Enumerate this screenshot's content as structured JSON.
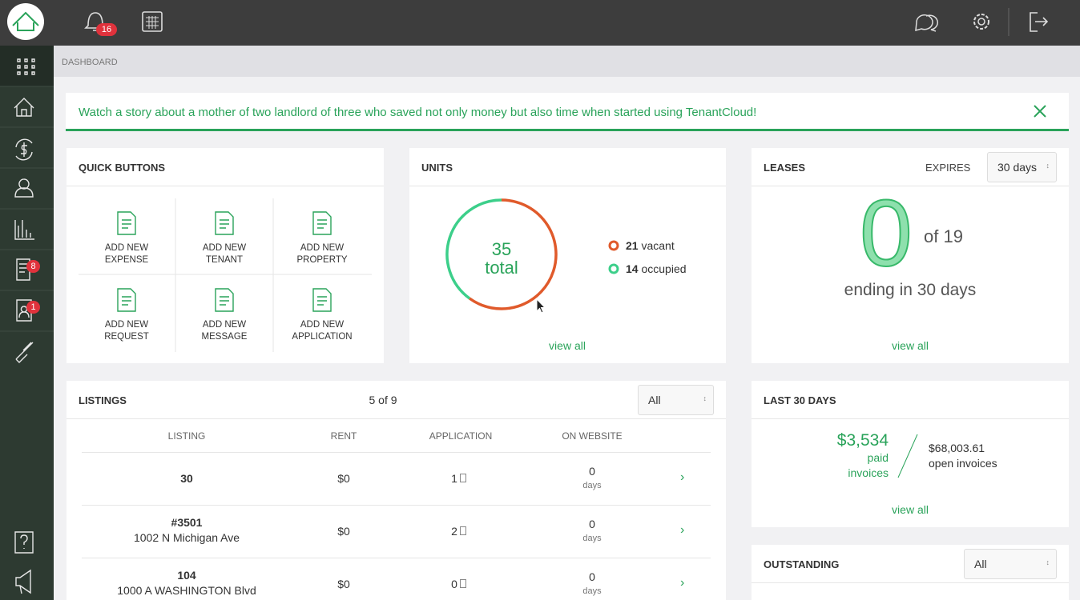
{
  "header": {
    "notifications_badge": "16"
  },
  "sidebar": {
    "badges": [
      "8",
      "1"
    ]
  },
  "breadcrumb": "DASHBOARD",
  "banner": "Watch a story about a mother of two landlord of three who saved not only money but also time when started using TenantCloud!",
  "quick_buttons": {
    "title": "QUICK BUTTONS",
    "buttons": [
      [
        "ADD NEW",
        "EXPENSE"
      ],
      [
        "ADD NEW",
        "TENANT"
      ],
      [
        "ADD NEW",
        "PROPERTY"
      ],
      [
        "ADD NEW",
        "REQUEST"
      ],
      [
        "ADD NEW",
        "MESSAGE"
      ],
      [
        "ADD NEW",
        "APPLICATION"
      ]
    ]
  },
  "units": {
    "title": "UNITS",
    "total": 35,
    "total_label": "total",
    "vacant": 21,
    "vacant_label": "vacant",
    "occupied": 14,
    "occupied_label": "occupied",
    "link": "view all"
  },
  "leases": {
    "title": "LEASES",
    "expires_label": "EXPIRES",
    "select": "30 days",
    "count": "0",
    "of": "of 19",
    "caption": "ending in 30 days",
    "link": "view all"
  },
  "listings": {
    "title": "LISTINGS",
    "count": "5 of 9",
    "filter": "All",
    "columns": [
      "LISTING",
      "RENT",
      "APPLICATION",
      "ON WEBSITE"
    ],
    "rows": [
      {
        "listing": [
          "30"
        ],
        "rent": "$0",
        "application": "1",
        "on_website": "0",
        "unit": "days"
      },
      {
        "listing": [
          "#3501",
          "1002 N Michigan Ave"
        ],
        "rent": "$0",
        "application": "2",
        "on_website": "0",
        "unit": "days"
      },
      {
        "listing": [
          "104",
          "1000 A WASHINGTON Blvd"
        ],
        "rent": "$0",
        "application": "0",
        "on_website": "0",
        "unit": "days"
      }
    ]
  },
  "last_30_days": {
    "title": "LAST 30 DAYS",
    "paid_amount": "$3,534",
    "paid_label": [
      "paid",
      "invoices"
    ],
    "open_amount": "$68,003.61",
    "open_label": "open invoices",
    "link": "view all"
  },
  "outstanding": {
    "title": "OUTSTANDING",
    "filter": "All"
  }
}
